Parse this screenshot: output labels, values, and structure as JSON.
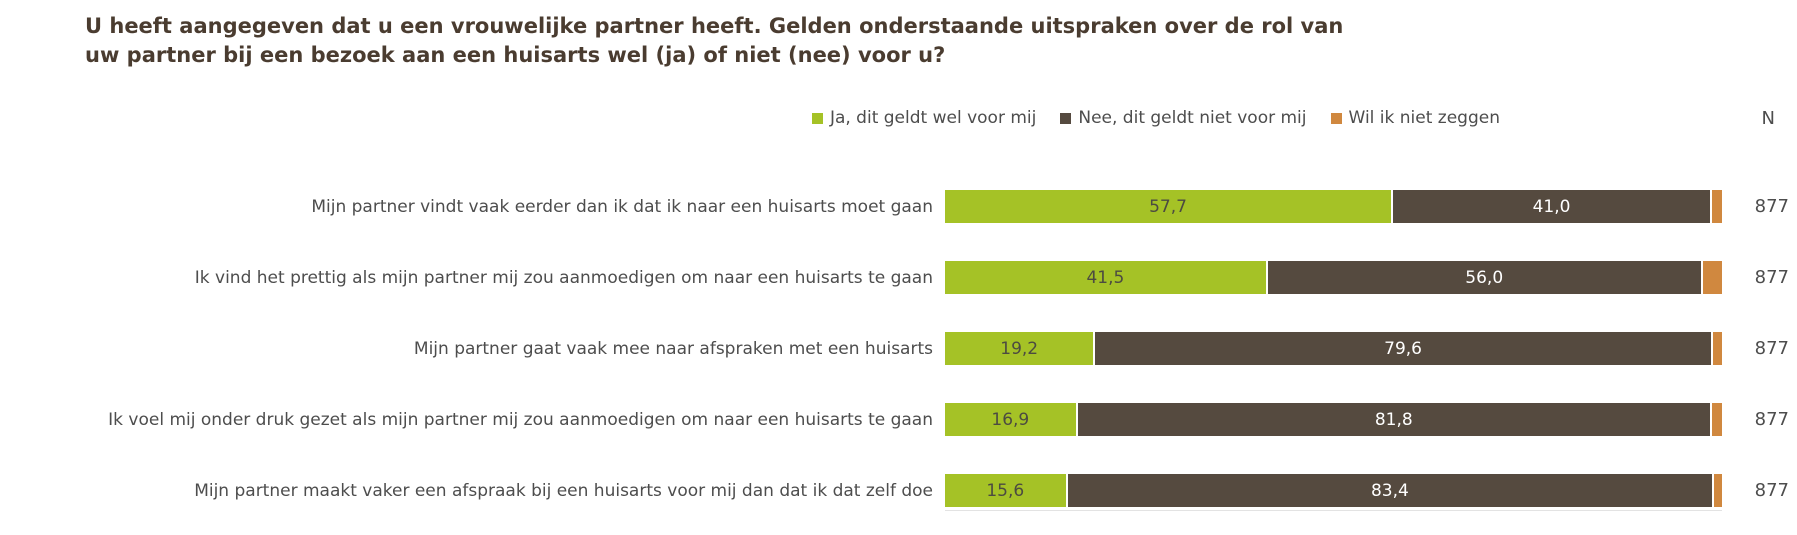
{
  "title": "U heeft aangegeven dat u een vrouwelijke partner heeft. Gelden onderstaande uitspraken over de rol van uw partner bij een bezoek aan een huisarts wel (ja) of niet (nee) voor u?",
  "legend": {
    "items": [
      {
        "label": "Ja, dit geldt wel voor mij",
        "color": "#a5c226"
      },
      {
        "label": "Nee, dit geldt niet voor mij",
        "color": "#554a3f"
      },
      {
        "label": "Wil ik niet zeggen",
        "color": "#d0883f"
      }
    ],
    "n_header": "N"
  },
  "chart_data": {
    "type": "bar",
    "orientation": "horizontal",
    "stacked": true,
    "unit": "percent",
    "xlim": [
      0,
      100
    ],
    "categories": [
      "Mijn partner vindt vaak eerder dan ik dat ik naar een huisarts moet gaan",
      "Ik vind het prettig als mijn partner mij zou aanmoedigen om naar een huisarts te gaan",
      "Mijn partner gaat vaak mee naar afspraken met een huisarts",
      "Ik voel mij onder druk gezet als mijn partner mij zou aanmoedigen om naar een huisarts te gaan",
      "Mijn partner maakt vaker een afspraak bij een huisarts voor mij dan dat ik dat zelf doe"
    ],
    "series": [
      {
        "key": "ja",
        "name": "Ja, dit geldt wel voor mij",
        "color": "#a5c226",
        "label_color": "#4c4b41",
        "values": [
          57.7,
          41.5,
          19.2,
          16.9,
          15.6
        ],
        "display": [
          "57,7",
          "41,5",
          "19,2",
          "16,9",
          "15,6"
        ]
      },
      {
        "key": "nee",
        "name": "Nee, dit geldt niet voor mij",
        "color": "#554a3f",
        "label_color": "#ffffff",
        "values": [
          41.0,
          56.0,
          79.6,
          81.8,
          83.4
        ],
        "display": [
          "41,0",
          "56,0",
          "79,6",
          "81,8",
          "83,4"
        ]
      },
      {
        "key": "wil-niet-zeggen",
        "name": "Wil ik niet zeggen",
        "color": "#d0883f",
        "label_color": "",
        "values": [
          1.3,
          2.5,
          1.2,
          1.3,
          1.0
        ],
        "display": [
          "",
          "",
          "",
          "",
          ""
        ]
      }
    ],
    "n_values": [
      877,
      877,
      877,
      877,
      877
    ]
  }
}
